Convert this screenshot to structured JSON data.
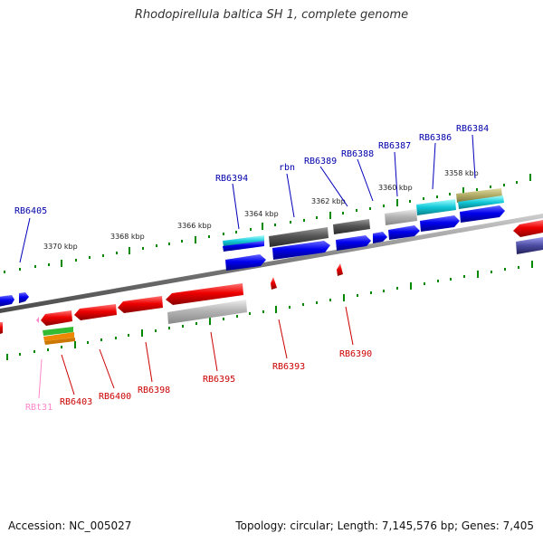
{
  "title": "Rhodopirellula baltica SH 1, complete genome",
  "footer": {
    "accession": "Accession: NC_005027",
    "topology": "Topology: circular; Length: 7,145,576 bp; Genes: 7,405"
  },
  "scale": [
    "3358 kbp",
    "3360 kbp",
    "3362 kbp",
    "3364 kbp",
    "3366 kbp",
    "3368 kbp",
    "3370 kbp"
  ],
  "labels_top": [
    "RB6405",
    "RB6394",
    "rbn",
    "RB6389",
    "RB6388",
    "RB6387",
    "RB6386",
    "RB6384"
  ],
  "labels_bottom": [
    "RBt31",
    "RB6403",
    "RB6400",
    "RB6398",
    "RB6395",
    "RB6393",
    "RB6390"
  ],
  "colors": {
    "forward_gene": "#0000ee",
    "reverse_gene": "#ee0000",
    "trna": "#ff88cc",
    "label_top": "#0000aa",
    "label_bottom": "#cc0000",
    "backbone": "#808080",
    "ticks": "#008800"
  }
}
